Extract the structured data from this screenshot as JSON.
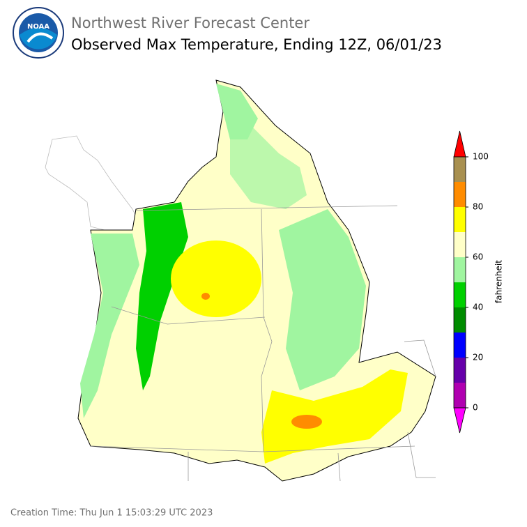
{
  "header": {
    "logo_text": "NOAA",
    "subtitle": "Northwest River Forecast Center",
    "title": "Observed Max Temperature, Ending 12Z, 06/01/23"
  },
  "colorbar": {
    "label": "fahrenheit",
    "levels": [
      0,
      10,
      20,
      30,
      40,
      50,
      60,
      70,
      80,
      90,
      100
    ],
    "colors": [
      "#b000b0",
      "#6600aa",
      "#0000ff",
      "#008c00",
      "#00d000",
      "#a0f5a0",
      "#ffffc8",
      "#ffff00",
      "#ff8c00",
      "#a89050"
    ],
    "under_color": "#ff00ff",
    "over_color": "#ff0000",
    "ticks": [
      0,
      20,
      40,
      60,
      80,
      100
    ]
  },
  "footer": {
    "creation_time": "Creation Time: Thu Jun 1 15:03:29 UTC 2023"
  }
}
